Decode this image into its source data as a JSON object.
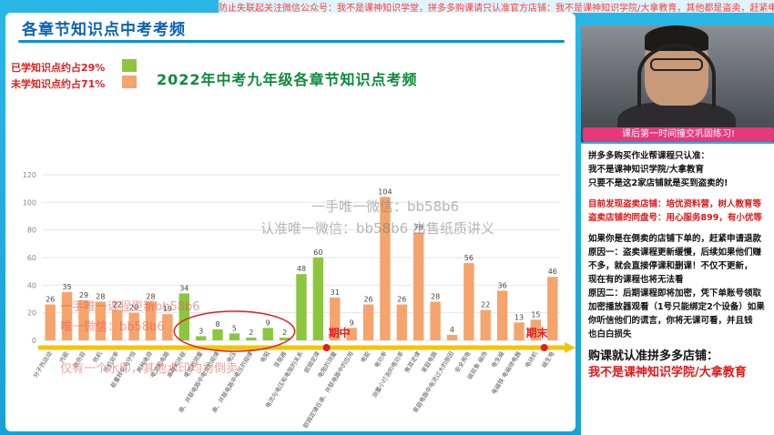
{
  "banner": "防止失联起关注微信公众号：我不是课神知识学堂，拼多多购课请只认准官方店铺：我不是课神知识学院/大拿教育，其他都是盗卖，赶紧申请退款!",
  "slide": {
    "title": "各章节知识点中考考频",
    "legend_learned": "已学知识点约占29%",
    "legend_unlearned": "未学知识点约占71%",
    "chart_title": "2022年中考九年级各章节知识点考频",
    "mark_mid": "期中",
    "mark_end": "期末"
  },
  "colors": {
    "learned": "#8cc63f",
    "unlearned": "#f4a46c",
    "axis": "#f5c400",
    "accent_red": "#e02020",
    "title_blue": "#0b62b5",
    "chart_title_green": "#0e8a3a"
  },
  "chart_data": {
    "type": "bar",
    "title": "2022年中考九年级各章节知识点考频",
    "ylim": [
      0,
      120
    ],
    "yticks": [
      0,
      20,
      40,
      60,
      80,
      100,
      120
    ],
    "grid": true,
    "values": [
      26,
      35,
      29,
      28,
      22,
      20,
      28,
      19,
      34,
      3,
      8,
      5,
      2,
      9,
      2,
      48,
      60,
      31,
      9,
      26,
      104,
      26,
      78,
      28,
      4,
      56,
      22,
      36,
      13,
      15,
      46
    ],
    "groups": [
      "unlearned",
      "unlearned",
      "unlearned",
      "unlearned",
      "unlearned",
      "unlearned",
      "unlearned",
      "unlearned",
      "learned",
      "learned",
      "learned",
      "learned",
      "learned",
      "learned",
      "learned",
      "learned",
      "learned",
      "unlearned",
      "unlearned",
      "unlearned",
      "unlearned",
      "unlearned",
      "unlearned",
      "unlearned",
      "unlearned",
      "unlearned",
      "unlearned",
      "unlearned",
      "unlearned",
      "unlearned",
      "unlearned"
    ],
    "categories": [
      "分子热运动",
      "内能",
      "比热容",
      "热机",
      "热机效率",
      "能量转化与守恒",
      "两种电荷",
      "电流和电路",
      "串联和并联",
      "电流的测量",
      "串、并联电路中电流的规律",
      "电压",
      "串、并联电路中电压的规律",
      "电阻",
      "变阻器",
      "电流与电压和电阻的关系",
      "欧姆定律",
      "电阻的测量",
      "欧姆定律在串、并联电路中的应用",
      "电能",
      "电功率",
      "测量小灯泡的电功率",
      "焦耳定律",
      "家庭电路",
      "家庭电路中电流过大的原因",
      "安全用电",
      "磁现象 磁场",
      "电生磁",
      "电磁铁 电磁继电器",
      "电动机",
      "磁生电"
    ]
  },
  "watermarks": {
    "wm1": "一手唯一微信：bb58b6",
    "wm2": "认准唯一微信：bb58b6 出售纸质讲义",
    "wm3": "一手唯一课程更新bb58b6",
    "wm4": "唯一微信：bb58b6",
    "wm5": "仅有一个水印，其他水印均为倒卖"
  },
  "webcam": {
    "caption": "课后第一时间撞交巩固练习!"
  },
  "side_panel": {
    "l1": "拼多多购买作业帮课程只认准：",
    "l2": "我不是课神知识学院/大拿教育",
    "l3": "只要不是这2家店铺就是买到盗卖的!",
    "l4": "目前发现盗卖店铺：培优资料营，树人教育等",
    "l5": "盗卖店铺的同盘号：用心服务899，有小优等",
    "l6": "如果你是在倒卖的店铺下单的，赶紧申请退款",
    "l7": "原因一：盗卖课程更新缓慢，后续如果他们赚",
    "l8": "不多，就会直接停课和删课！不仅不更新，",
    "l9": "现在有的课程也将无法看",
    "l10": "原因二：后期课程即将加密，凭下单账号领取",
    "l11": "加密播放器观看（1号只能绑定2个设备）如果",
    "l12": "你听信他们的谎言，你将无课可看，并且钱",
    "l13": "也白白损失",
    "l14": "购课就认准拼多多店铺：",
    "l15": "我不是课神知识学院/大拿教育"
  }
}
